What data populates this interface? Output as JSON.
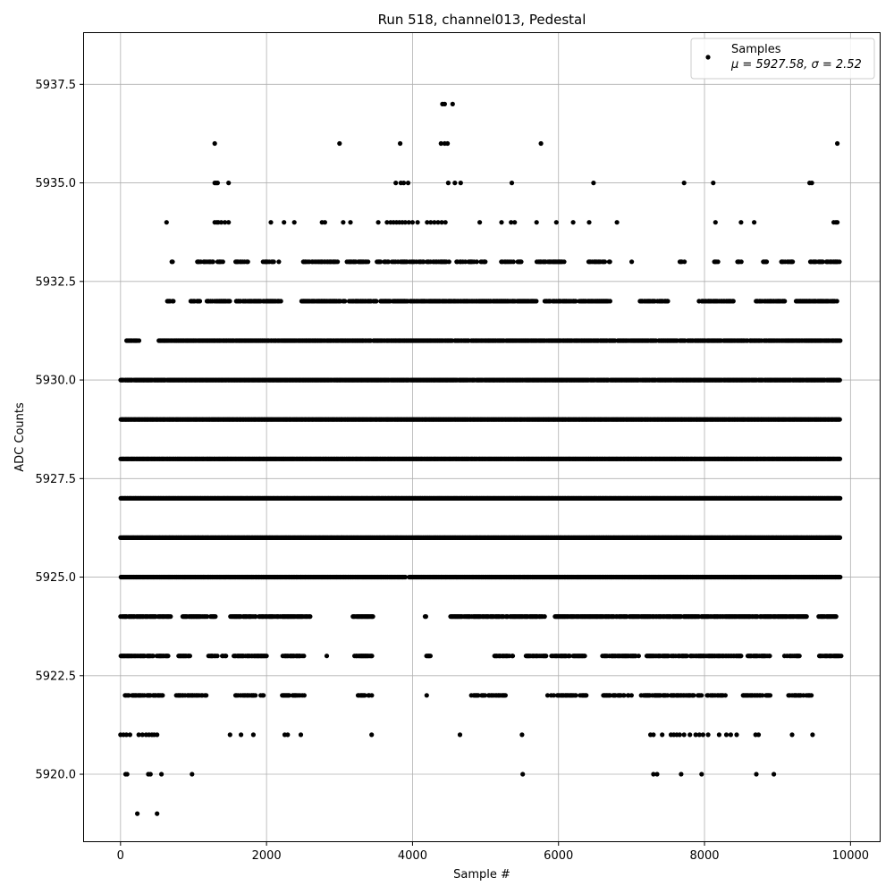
{
  "chart_data": {
    "type": "scatter",
    "title": "Run 518, channel013, Pedestal",
    "xlabel": "Sample #",
    "ylabel": "ADC Counts",
    "xlim": [
      -500,
      10400
    ],
    "ylim": [
      5918.3,
      5938.8
    ],
    "xticks": [
      0,
      2000,
      4000,
      6000,
      8000,
      10000
    ],
    "xtick_labels": [
      "0",
      "2000",
      "4000",
      "6000",
      "8000",
      "10000"
    ],
    "yticks": [
      5920.0,
      5922.5,
      5925.0,
      5927.5,
      5930.0,
      5932.5,
      5935.0,
      5937.5
    ],
    "ytick_labels": [
      "5920.0",
      "5922.5",
      "5925.0",
      "5927.5",
      "5930.0",
      "5932.5",
      "5935.0",
      "5937.5"
    ],
    "grid": true,
    "legend_position": "top-right",
    "series": [
      {
        "name": "Samples",
        "color": "#000000",
        "bands": [
          {
            "y": 5919,
            "points": [
              230,
              500
            ]
          },
          {
            "y": 5920,
            "points": [
              70,
              90,
              380,
              410,
              560,
              980,
              5510,
              7300,
              7350,
              7680,
              7960,
              8710,
              8950
            ]
          },
          {
            "y": 5921,
            "points": [
              0,
              40,
              80,
              130,
              250,
              300,
              350,
              390,
              430,
              460,
              500,
              1500,
              1650,
              1820,
              2250,
              2290,
              2470,
              3440,
              4650,
              5500,
              7260,
              7300,
              7420,
              7540,
              7580,
              7620,
              7660,
              7720,
              7800,
              7880,
              7930,
              7980,
              8050,
              8200,
              8300,
              8360,
              8440,
              8700,
              8740,
              9200,
              9480
            ]
          }
        ],
        "dense_bands": [
          {
            "y": 5922,
            "segments": [
              [
                60,
                580
              ],
              [
                760,
                1200
              ],
              [
                1560,
                1970
              ],
              [
                2200,
                2520
              ],
              [
                3250,
                3450
              ],
              [
                4190,
                4200
              ],
              [
                4800,
                5270
              ],
              [
                5850,
                6400
              ],
              [
                6610,
                7000
              ],
              [
                7130,
                8000
              ],
              [
                8020,
                8300
              ],
              [
                8500,
                8900
              ],
              [
                9150,
                9480
              ]
            ],
            "density": 0.6
          },
          {
            "y": 5923,
            "segments": [
              [
                0,
                670
              ],
              [
                790,
                950
              ],
              [
                1200,
                1450
              ],
              [
                1550,
                2000
              ],
              [
                2220,
                2530
              ],
              [
                2820,
                2830
              ],
              [
                3200,
                3450
              ],
              [
                4180,
                4240
              ],
              [
                5120,
                5400
              ],
              [
                5540,
                5830
              ],
              [
                5900,
                6370
              ],
              [
                6600,
                7100
              ],
              [
                7180,
                8500
              ],
              [
                8580,
                8900
              ],
              [
                9080,
                9300
              ],
              [
                9570,
                9870
              ]
            ],
            "density": 0.75
          },
          {
            "y": 5924,
            "segments": [
              [
                0,
                700
              ],
              [
                850,
                1300
              ],
              [
                1500,
                2600
              ],
              [
                3180,
                3460
              ],
              [
                4170,
                4190
              ],
              [
                4520,
                5820
              ],
              [
                5950,
                9400
              ],
              [
                9560,
                9800
              ]
            ],
            "density": 0.85
          },
          {
            "y": 5925,
            "segments": [
              [
                0,
                3900
              ],
              [
                3950,
                9860
              ]
            ],
            "density": 1.0
          },
          {
            "y": 5926,
            "segments": [
              [
                0,
                9860
              ]
            ],
            "density": 1.0
          },
          {
            "y": 5927,
            "segments": [
              [
                0,
                9860
              ]
            ],
            "density": 1.0
          },
          {
            "y": 5928,
            "segments": [
              [
                0,
                9860
              ]
            ],
            "density": 1.0
          },
          {
            "y": 5929,
            "segments": [
              [
                0,
                9860
              ]
            ],
            "density": 1.0
          },
          {
            "y": 5930,
            "segments": [
              [
                0,
                9860
              ]
            ],
            "density": 0.97
          },
          {
            "y": 5931,
            "segments": [
              [
                80,
                250
              ],
              [
                520,
                9860
              ]
            ],
            "density": 0.9
          },
          {
            "y": 5932,
            "segments": [
              [
                640,
                730
              ],
              [
                950,
                1100
              ],
              [
                1180,
                1500
              ],
              [
                1580,
                2200
              ],
              [
                2480,
                3500
              ],
              [
                3560,
                5700
              ],
              [
                5800,
                6700
              ],
              [
                7100,
                7500
              ],
              [
                7900,
                8400
              ],
              [
                8700,
                9100
              ],
              [
                9250,
                9820
              ]
            ],
            "density": 0.78
          },
          {
            "y": 5933,
            "segments": [
              [
                700,
                720
              ],
              [
                1050,
                1400
              ],
              [
                1550,
                1750
              ],
              [
                1950,
                2200
              ],
              [
                2500,
                3000
              ],
              [
                3100,
                3400
              ],
              [
                3500,
                4500
              ],
              [
                4600,
                5000
              ],
              [
                5200,
                5500
              ],
              [
                5700,
                6100
              ],
              [
                6400,
                6700
              ],
              [
                7000,
                7010
              ],
              [
                7650,
                7750
              ],
              [
                8120,
                8180
              ],
              [
                8450,
                8500
              ],
              [
                8800,
                8850
              ],
              [
                9050,
                9250
              ],
              [
                9450,
                9850
              ]
            ],
            "density": 0.62
          }
        ],
        "sparse_bands": [
          {
            "y": 5934,
            "points": [
              630,
              1290,
              1320,
              1340,
              1380,
              1430,
              1480,
              2060,
              2240,
              2380,
              2760,
              2800,
              3050,
              3150,
              3530,
              3650,
              3700,
              3740,
              3780,
              3820,
              3860,
              3900,
              3950,
              4000,
              4070,
              4200,
              4250,
              4300,
              4350,
              4400,
              4450,
              4920,
              5220,
              5350,
              5400,
              5700,
              5970,
              6200,
              6420,
              6800,
              8150,
              8500,
              8680,
              9770,
              9800,
              9820
            ]
          },
          {
            "y": 5935,
            "points": [
              1290,
              1310,
              1330,
              1480,
              3770,
              3840,
              3880,
              3940,
              4490,
              4580,
              4660,
              5360,
              6480,
              7720,
              8120,
              9440,
              9470
            ]
          },
          {
            "y": 5936,
            "points": [
              1290,
              3000,
              3830,
              4390,
              4440,
              4480,
              5760,
              9820
            ]
          },
          {
            "y": 5937,
            "points": [
              4410,
              4440,
              4550
            ]
          }
        ]
      }
    ],
    "legend": {
      "entries": [
        "Samples"
      ],
      "stats": "μ = 5927.58, σ = 2.52"
    }
  }
}
